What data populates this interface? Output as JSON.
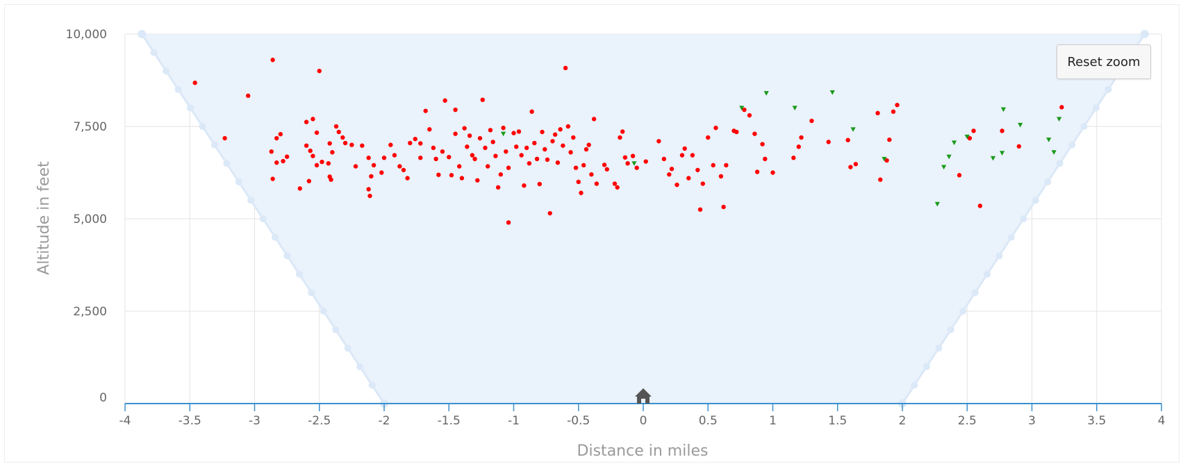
{
  "reset_zoom_label": "Reset zoom",
  "chart_data": {
    "type": "scatter",
    "xlabel": "Distance in miles",
    "ylabel": "Altitude in feet",
    "xlim": [
      -4,
      4
    ],
    "ylim": [
      0,
      10000
    ],
    "x_ticks": [
      "-4",
      "-3.5",
      "-3",
      "-2.5",
      "-2",
      "-1.5",
      "-1",
      "-0.5",
      "0",
      "0.5",
      "1",
      "1.5",
      "2",
      "2.5",
      "3",
      "3.5",
      "4"
    ],
    "y_ticks": [
      "0",
      "2,500",
      "5,000",
      "7,500",
      "10,000"
    ],
    "colors": {
      "area": "#eaf2fb",
      "area_line": "#dbe8f7",
      "red": "#ff0000",
      "green": "#1a9a1a",
      "grid": "#e3e3e3",
      "axis": "#3a8fd0",
      "home": "#555555"
    },
    "coverage_area": {
      "name": "coverage",
      "points": [
        [
          -3.87,
          10000
        ],
        [
          -2.0,
          0
        ],
        [
          2.0,
          0
        ],
        [
          3.87,
          10000
        ]
      ]
    },
    "home_marker": {
      "icon": "home-icon",
      "x": 0,
      "y": 0
    },
    "series": [
      {
        "marker": "circle",
        "color": "#ff0000",
        "points": [
          [
            -3.46,
            8680
          ],
          [
            -3.23,
            7180
          ],
          [
            -3.05,
            8330
          ],
          [
            -2.86,
            9300
          ],
          [
            -2.83,
            7180
          ],
          [
            -2.8,
            7290
          ],
          [
            -2.87,
            6820
          ],
          [
            -2.83,
            6520
          ],
          [
            -2.86,
            6080
          ],
          [
            -2.78,
            6560
          ],
          [
            -2.75,
            6680
          ],
          [
            -2.65,
            5820
          ],
          [
            -2.6,
            7620
          ],
          [
            -2.55,
            7700
          ],
          [
            -2.5,
            9000
          ],
          [
            -2.6,
            6980
          ],
          [
            -2.57,
            6840
          ],
          [
            -2.55,
            6700
          ],
          [
            -2.52,
            6450
          ],
          [
            -2.58,
            6020
          ],
          [
            -2.52,
            7330
          ],
          [
            -2.48,
            6540
          ],
          [
            -2.43,
            6500
          ],
          [
            -2.42,
            7040
          ],
          [
            -2.4,
            6800
          ],
          [
            -2.42,
            6140
          ],
          [
            -2.41,
            6060
          ],
          [
            -2.37,
            7500
          ],
          [
            -2.35,
            7350
          ],
          [
            -2.32,
            7200
          ],
          [
            -2.3,
            7050
          ],
          [
            -2.25,
            7000
          ],
          [
            -2.22,
            6420
          ],
          [
            -2.17,
            6980
          ],
          [
            -2.12,
            6650
          ],
          [
            -2.12,
            5800
          ],
          [
            -2.11,
            5620
          ],
          [
            -2.1,
            6150
          ],
          [
            -2.08,
            6450
          ],
          [
            -2.02,
            6250
          ],
          [
            -2.0,
            6650
          ],
          [
            -1.95,
            7000
          ],
          [
            -1.92,
            6720
          ],
          [
            -1.88,
            6420
          ],
          [
            -1.85,
            6320
          ],
          [
            -1.82,
            6100
          ],
          [
            -1.8,
            7050
          ],
          [
            -1.76,
            7160
          ],
          [
            -1.72,
            7040
          ],
          [
            -1.72,
            6650
          ],
          [
            -1.68,
            7920
          ],
          [
            -1.65,
            7420
          ],
          [
            -1.62,
            6920
          ],
          [
            -1.6,
            6620
          ],
          [
            -1.58,
            6190
          ],
          [
            -1.55,
            6820
          ],
          [
            -1.53,
            8200
          ],
          [
            -1.5,
            6670
          ],
          [
            -1.48,
            6180
          ],
          [
            -1.45,
            7950
          ],
          [
            -1.45,
            7300
          ],
          [
            -1.42,
            6420
          ],
          [
            -1.4,
            6100
          ],
          [
            -1.38,
            7450
          ],
          [
            -1.36,
            6950
          ],
          [
            -1.34,
            7250
          ],
          [
            -1.32,
            6720
          ],
          [
            -1.3,
            6620
          ],
          [
            -1.28,
            6040
          ],
          [
            -1.26,
            7180
          ],
          [
            -1.24,
            8220
          ],
          [
            -1.22,
            6920
          ],
          [
            -1.2,
            6420
          ],
          [
            -1.18,
            7400
          ],
          [
            -1.16,
            7080
          ],
          [
            -1.14,
            6700
          ],
          [
            -1.12,
            5850
          ],
          [
            -1.1,
            6200
          ],
          [
            -1.08,
            7460
          ],
          [
            -1.06,
            6820
          ],
          [
            -1.04,
            6380
          ],
          [
            -1.04,
            4900
          ],
          [
            -1.0,
            7320
          ],
          [
            -0.98,
            6950
          ],
          [
            -0.96,
            7360
          ],
          [
            -0.94,
            6720
          ],
          [
            -0.92,
            5900
          ],
          [
            -0.9,
            6920
          ],
          [
            -0.88,
            6500
          ],
          [
            -0.86,
            7900
          ],
          [
            -0.84,
            7050
          ],
          [
            -0.82,
            6620
          ],
          [
            -0.8,
            5940
          ],
          [
            -0.78,
            7350
          ],
          [
            -0.76,
            6880
          ],
          [
            -0.74,
            6600
          ],
          [
            -0.72,
            5150
          ],
          [
            -0.7,
            7100
          ],
          [
            -0.68,
            7280
          ],
          [
            -0.66,
            6520
          ],
          [
            -0.64,
            7420
          ],
          [
            -0.62,
            6980
          ],
          [
            -0.6,
            9080
          ],
          [
            -0.58,
            7500
          ],
          [
            -0.56,
            6800
          ],
          [
            -0.54,
            7200
          ],
          [
            -0.52,
            6380
          ],
          [
            -0.5,
            6000
          ],
          [
            -0.48,
            5700
          ],
          [
            -0.46,
            6450
          ],
          [
            -0.44,
            6880
          ],
          [
            -0.42,
            7000
          ],
          [
            -0.4,
            6200
          ],
          [
            -0.38,
            7700
          ],
          [
            -0.36,
            5950
          ],
          [
            -0.3,
            6460
          ],
          [
            -0.28,
            6340
          ],
          [
            -0.22,
            5950
          ],
          [
            -0.2,
            5850
          ],
          [
            -0.18,
            7200
          ],
          [
            -0.16,
            7360
          ],
          [
            -0.14,
            6660
          ],
          [
            -0.12,
            6500
          ],
          [
            -0.08,
            6700
          ],
          [
            -0.05,
            6380
          ],
          [
            0.02,
            6550
          ],
          [
            0.12,
            7100
          ],
          [
            0.16,
            6620
          ],
          [
            0.2,
            6200
          ],
          [
            0.22,
            6350
          ],
          [
            0.26,
            5920
          ],
          [
            0.3,
            6720
          ],
          [
            0.32,
            6900
          ],
          [
            0.35,
            6100
          ],
          [
            0.38,
            6720
          ],
          [
            0.42,
            6320
          ],
          [
            0.44,
            5250
          ],
          [
            0.46,
            5950
          ],
          [
            0.5,
            7200
          ],
          [
            0.54,
            6450
          ],
          [
            0.56,
            7460
          ],
          [
            0.6,
            6150
          ],
          [
            0.62,
            5320
          ],
          [
            0.64,
            6450
          ],
          [
            0.7,
            7380
          ],
          [
            0.72,
            7350
          ],
          [
            0.78,
            7950
          ],
          [
            0.82,
            7800
          ],
          [
            0.86,
            7300
          ],
          [
            0.88,
            6270
          ],
          [
            0.92,
            7020
          ],
          [
            0.94,
            6620
          ],
          [
            1.0,
            6250
          ],
          [
            1.16,
            6650
          ],
          [
            1.2,
            6950
          ],
          [
            1.22,
            7200
          ],
          [
            1.3,
            7650
          ],
          [
            1.43,
            7080
          ],
          [
            1.58,
            7130
          ],
          [
            1.6,
            6400
          ],
          [
            1.64,
            6480
          ],
          [
            1.81,
            7860
          ],
          [
            1.83,
            6060
          ],
          [
            1.88,
            6580
          ],
          [
            1.9,
            7140
          ],
          [
            1.93,
            7900
          ],
          [
            1.96,
            8080
          ],
          [
            2.44,
            6180
          ],
          [
            2.52,
            7180
          ],
          [
            2.55,
            7380
          ],
          [
            2.6,
            5350
          ],
          [
            2.77,
            7380
          ],
          [
            2.9,
            6960
          ],
          [
            3.23,
            8020
          ]
        ]
      },
      {
        "marker": "triangle-down",
        "color": "#1a9a1a",
        "points": [
          [
            -1.08,
            7300
          ],
          [
            -0.07,
            6500
          ],
          [
            0.76,
            8000
          ],
          [
            0.95,
            8400
          ],
          [
            1.17,
            8000
          ],
          [
            1.46,
            8420
          ],
          [
            1.62,
            7420
          ],
          [
            1.86,
            6620
          ],
          [
            2.27,
            5400
          ],
          [
            2.32,
            6400
          ],
          [
            2.36,
            6680
          ],
          [
            2.4,
            7060
          ],
          [
            2.5,
            7220
          ],
          [
            2.7,
            6640
          ],
          [
            2.77,
            6780
          ],
          [
            2.78,
            7960
          ],
          [
            2.91,
            7540
          ],
          [
            3.13,
            7140
          ],
          [
            3.17,
            6800
          ],
          [
            3.21,
            7700
          ]
        ]
      }
    ]
  }
}
